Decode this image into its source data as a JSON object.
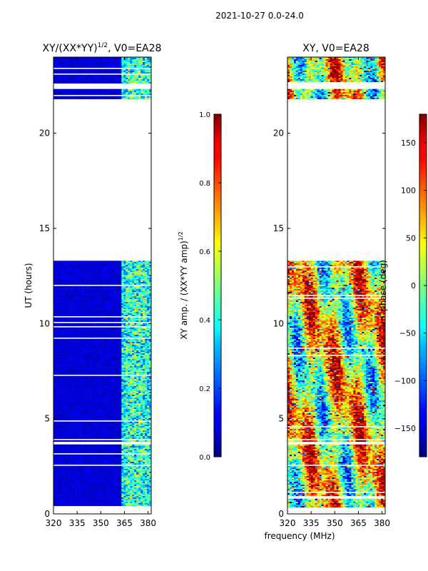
{
  "figure_title": "2021-10-27 0.0-24.0",
  "shared_xlabel": "frequency (MHz)",
  "chart_data": [
    {
      "type": "heatmap",
      "title": "XY/(XX*YY)",
      "title_exp": "1/2",
      "title_suffix": ", V0=EA28",
      "xlabel": "",
      "ylabel": "UT (hours)",
      "xlim": [
        320,
        382
      ],
      "ylim": [
        0,
        24
      ],
      "xticks": [
        320,
        335,
        350,
        365,
        380
      ],
      "yticks": [
        0,
        5,
        10,
        15,
        20
      ],
      "colormap": "jet",
      "data_bands_hours": [
        [
          0.35,
          13.3
        ],
        [
          21.8,
          24.0
        ]
      ],
      "gaps_hours": [
        [
          3.6,
          3.8
        ],
        [
          2.5,
          2.6
        ],
        [
          22.3,
          22.6
        ]
      ],
      "colorbar": {
        "label_main": "XY amp. / (XX*YY amp)",
        "label_exp": "1/2",
        "range": [
          0.0,
          1.0
        ],
        "ticks": [
          "0.0",
          "0.2",
          "0.4",
          "0.6",
          "0.8",
          "1.0"
        ]
      }
    },
    {
      "type": "heatmap",
      "title": "XY, V0=EA28",
      "xlabel": "frequency (MHz)",
      "ylabel": "",
      "xlim": [
        320,
        382
      ],
      "ylim": [
        0,
        24
      ],
      "xticks": [
        320,
        335,
        350,
        365,
        380
      ],
      "yticks": [
        0,
        5,
        10,
        15,
        20
      ],
      "colormap": "jet",
      "data_bands_hours": [
        [
          0.35,
          13.3
        ],
        [
          21.8,
          24.0
        ]
      ],
      "gaps_hours": [
        [
          3.6,
          3.8
        ],
        [
          2.5,
          2.6
        ],
        [
          22.3,
          22.6
        ]
      ],
      "colorbar": {
        "label": "phase (deg)",
        "range": [
          -180,
          180
        ],
        "ticks": [
          "150",
          "100",
          "50",
          "0",
          "−50",
          "−100",
          "−150"
        ],
        "tick_values": [
          150,
          100,
          50,
          0,
          -50,
          -100,
          -150
        ]
      }
    }
  ]
}
